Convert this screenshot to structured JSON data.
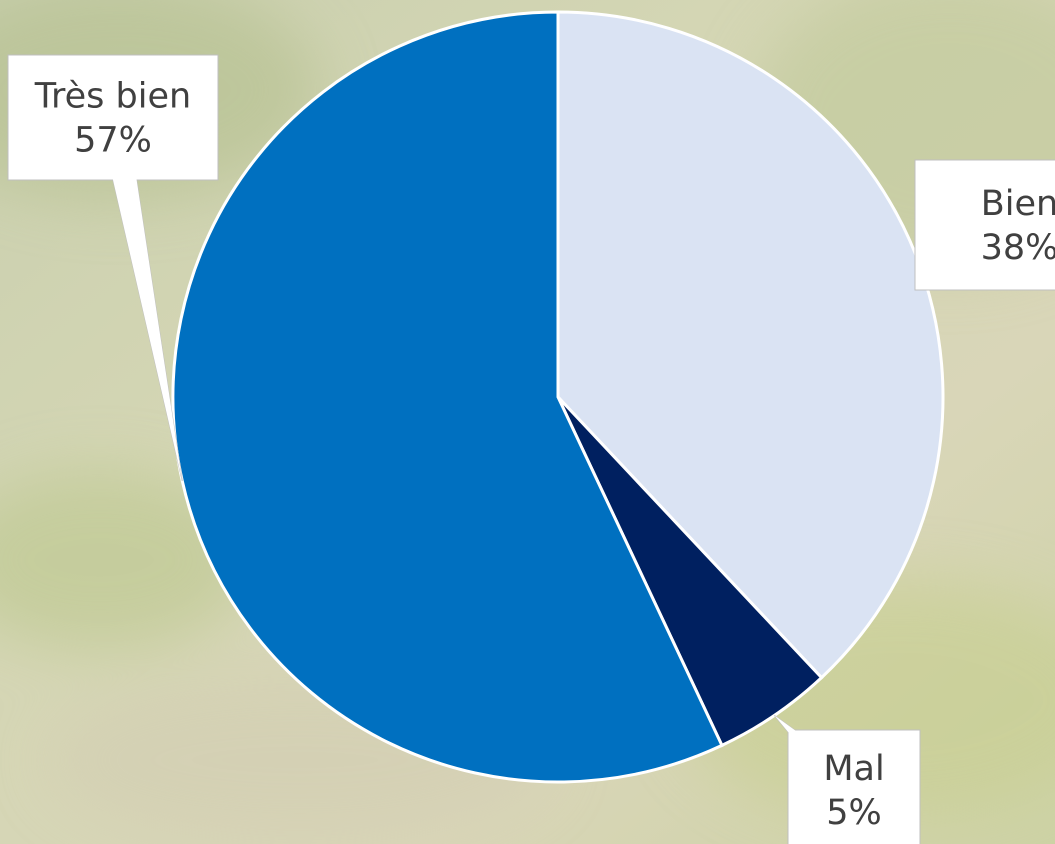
{
  "chart_data": {
    "type": "pie",
    "categories": [
      "Bien",
      "Mal",
      "Très bien"
    ],
    "values": [
      38,
      5,
      57
    ],
    "value_labels": [
      "38%",
      "5%",
      "57%"
    ],
    "colors": [
      "#dae3f3",
      "#002060",
      "#0070c0"
    ]
  }
}
